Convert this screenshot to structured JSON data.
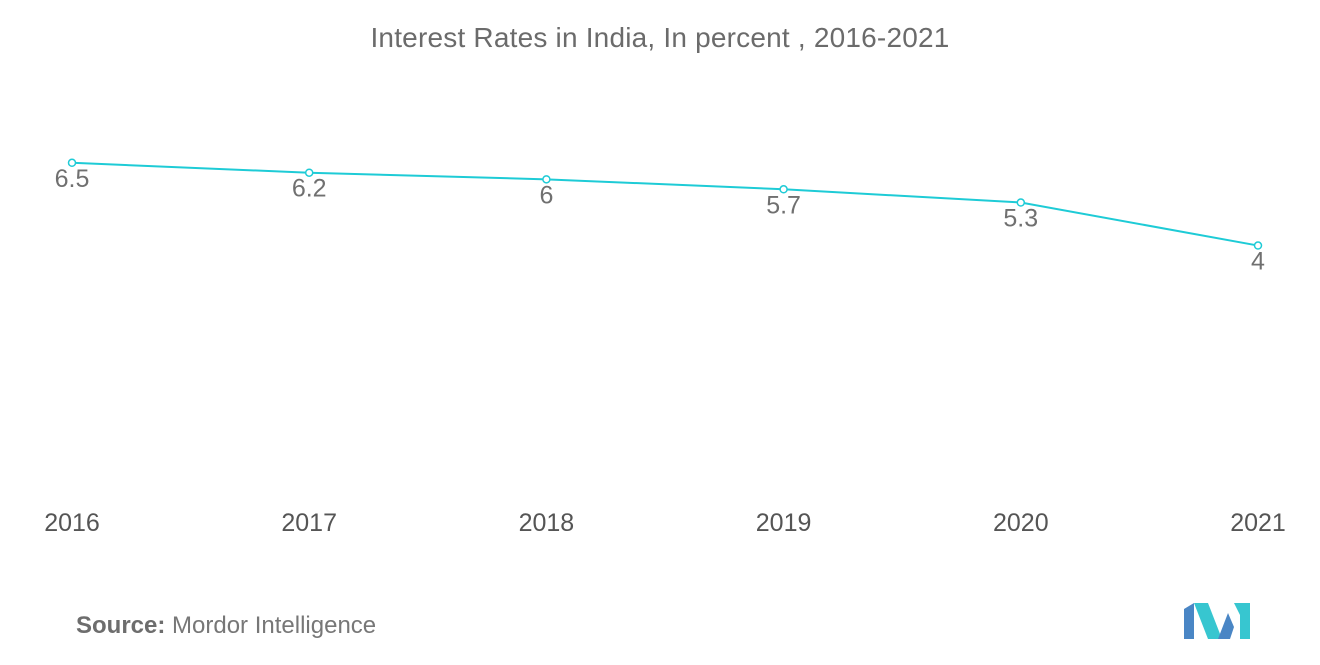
{
  "chart_data": {
    "type": "line",
    "title": "Interest Rates in India, In percent ,  2016-2021",
    "categories": [
      "2016",
      "2017",
      "2018",
      "2019",
      "2020",
      "2021"
    ],
    "series": [
      {
        "values": [
          6.5,
          6.2,
          6,
          5.7,
          5.3,
          4
        ],
        "labels": [
          "6.5",
          "6.2",
          "6",
          "5.7",
          "5.3",
          "4"
        ]
      }
    ],
    "xlabel": "",
    "ylabel": "",
    "ylim": [
      0,
      9
    ],
    "grid": false,
    "legend": "none"
  },
  "footer": {
    "source_label": "Source:",
    "source_value": "Mordor Intelligence"
  },
  "colors": {
    "line": "#1ecbd6",
    "marker_fill": "#ffffff",
    "label_text": "#707070",
    "axis_text": "#555555",
    "logo_dark": "#4a86c5",
    "logo_light": "#37c6d0"
  },
  "logo": {
    "icon": "mordor-intelligence-logo-icon"
  }
}
